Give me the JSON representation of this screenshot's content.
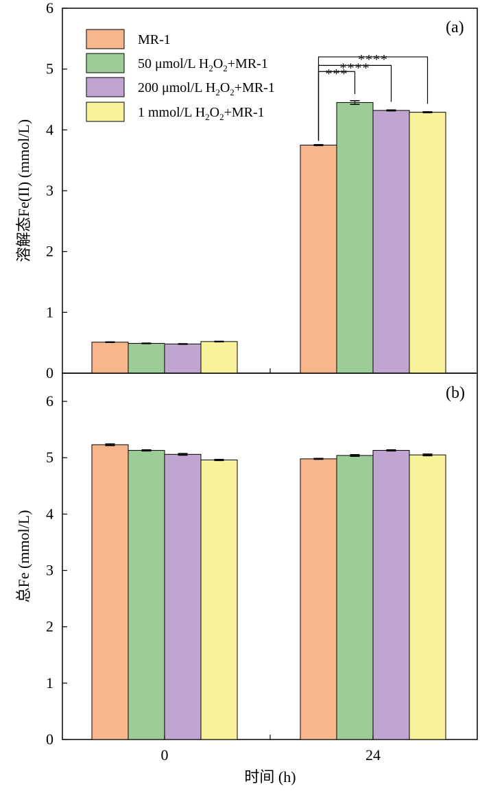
{
  "chart_data": [
    {
      "panel": "(a)",
      "type": "bar",
      "categories": [
        "0",
        "24"
      ],
      "ylabel": "溶解态Fe(II) (mmol/L)",
      "ylim": [
        0,
        6
      ],
      "yticks": [
        "0",
        "1",
        "2",
        "3",
        "4",
        "5",
        "6"
      ],
      "series": [
        {
          "name": "MR-1",
          "values": [
            0.51,
            3.75
          ],
          "errors": [
            0.005,
            0.008
          ],
          "color": "#F8B68C"
        },
        {
          "name": "50 μmol/L H₂O₂+MR-1",
          "values": [
            0.49,
            4.45
          ],
          "errors": [
            0.005,
            0.03
          ],
          "color": "#9DCD96"
        },
        {
          "name": "200 μmol/L H₂O₂+MR-1",
          "values": [
            0.48,
            4.32
          ],
          "errors": [
            0.005,
            0.008
          ],
          "color": "#BFA5D0"
        },
        {
          "name": "1 mmol/L H₂O₂+MR-1",
          "values": [
            0.52,
            4.29
          ],
          "errors": [
            0.005,
            0.008
          ],
          "color": "#F8F29B"
        }
      ],
      "significance": [
        {
          "compare": [
            "MR-1",
            "50 μmol/L H₂O₂+MR-1"
          ],
          "category": "24",
          "label": "***"
        },
        {
          "compare": [
            "MR-1",
            "200 μmol/L H₂O₂+MR-1"
          ],
          "category": "24",
          "label": "****"
        },
        {
          "compare": [
            "MR-1",
            "1 mmol/L H₂O₂+MR-1"
          ],
          "category": "24",
          "label": "****"
        }
      ],
      "legend": "top-left"
    },
    {
      "panel": "(b)",
      "type": "bar",
      "categories": [
        "0",
        "24"
      ],
      "xlabel": "时间 (h)",
      "ylabel": "总Fe (mmol/L)",
      "ylim": [
        0,
        6.5
      ],
      "yticks": [
        "0",
        "1",
        "2",
        "3",
        "4",
        "5",
        "6"
      ],
      "series": [
        {
          "name": "MR-1",
          "values": [
            5.23,
            4.98
          ],
          "errors": [
            0.015,
            0.008
          ],
          "color": "#F8B68C"
        },
        {
          "name": "50 μmol/L H₂O₂+MR-1",
          "values": [
            5.13,
            5.04
          ],
          "errors": [
            0.01,
            0.015
          ],
          "color": "#9DCD96"
        },
        {
          "name": "200 μmol/L H₂O₂+MR-1",
          "values": [
            5.06,
            5.13
          ],
          "errors": [
            0.015,
            0.01
          ],
          "color": "#BFA5D0"
        },
        {
          "name": "1 mmol/L H₂O₂+MR-1",
          "values": [
            4.96,
            5.05
          ],
          "errors": [
            0.01,
            0.015
          ],
          "color": "#F8F29B"
        }
      ]
    }
  ],
  "legend_entries": [
    {
      "prefix": "MR-1",
      "sub": "",
      "mid": "",
      "sub2": "",
      "suffix": ""
    },
    {
      "prefix": "50 μmol/L H",
      "sub": "2",
      "mid": "O",
      "sub2": "2",
      "suffix": "+MR-1"
    },
    {
      "prefix": "200 μmol/L H",
      "sub": "2",
      "mid": "O",
      "sub2": "2",
      "suffix": "+MR-1"
    },
    {
      "prefix": "1 mmol/L H",
      "sub": "2",
      "mid": "O",
      "sub2": "2",
      "suffix": "+MR-1"
    }
  ]
}
